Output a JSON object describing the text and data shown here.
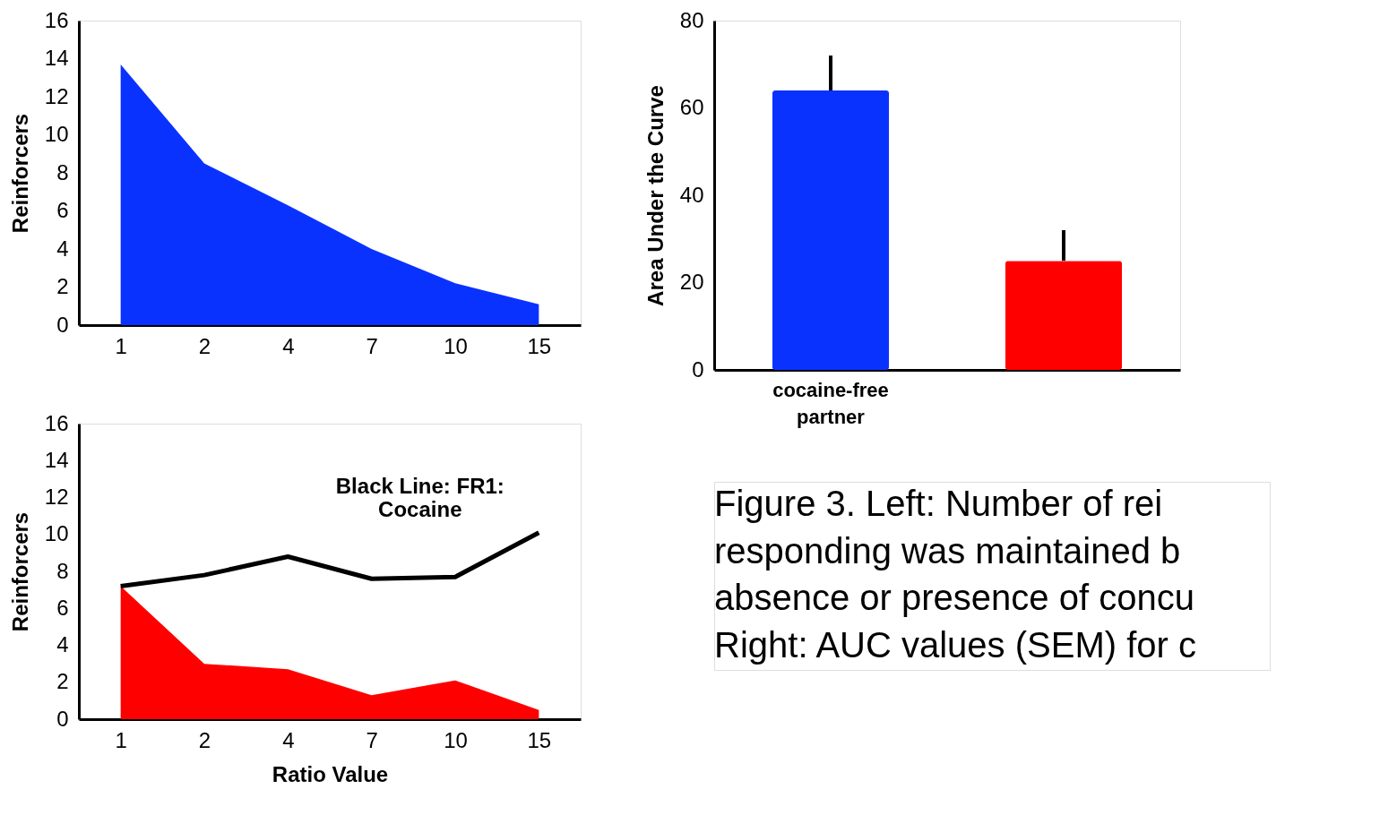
{
  "chart_data": [
    {
      "type": "area",
      "categories": [
        "1",
        "2",
        "4",
        "7",
        "10",
        "15"
      ],
      "ylabel": "Reinforcers",
      "ylim": [
        0,
        16
      ],
      "yticks": [
        0,
        2,
        4,
        6,
        8,
        10,
        12,
        14,
        16
      ],
      "grid": false,
      "series": [
        {
          "color": "#0a32ff",
          "values": [
            13.7,
            8.5,
            6.3,
            4.0,
            2.2,
            1.1
          ]
        }
      ]
    },
    {
      "type": "area",
      "categories": [
        "1",
        "2",
        "4",
        "7",
        "10",
        "15"
      ],
      "xlabel": "Ratio Value",
      "ylabel": "Reinforcers",
      "ylim": [
        0,
        16
      ],
      "yticks": [
        0,
        2,
        4,
        6,
        8,
        10,
        12,
        14,
        16
      ],
      "grid": false,
      "annotations": [
        "Black Line: FR1:\nCocaine"
      ],
      "series": [
        {
          "color": "#ff0000",
          "values": [
            7.2,
            3.0,
            2.7,
            1.3,
            2.1,
            0.5
          ]
        },
        {
          "type": "line",
          "color": "#000000",
          "values": [
            7.2,
            7.8,
            8.8,
            7.6,
            7.7,
            10.1
          ]
        }
      ]
    },
    {
      "type": "bar",
      "categories": [
        "cocaine-free\npartner",
        null
      ],
      "ylabel": "Area Under the Curve",
      "ylim": [
        0,
        80
      ],
      "yticks": [
        0,
        20,
        40,
        60,
        80
      ],
      "grid": false,
      "series": [
        {
          "colors": [
            "#0a32ff",
            "#ff0000"
          ],
          "values": [
            64,
            25
          ],
          "errors": [
            [
              64,
              72
            ],
            [
              25,
              32
            ]
          ]
        }
      ]
    },
    {
      "type": "other",
      "annotations": [
        "Figure 3. Left: Number of rei",
        "responding was maintained b",
        "absence or presence of concu",
        "Right: AUC values (SEM) for c"
      ]
    }
  ]
}
